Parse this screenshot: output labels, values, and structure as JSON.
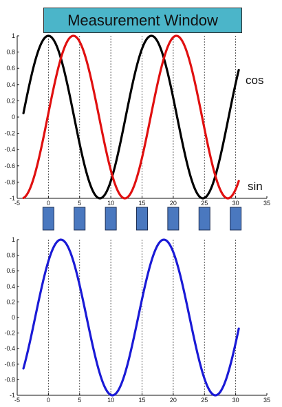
{
  "title": "Measurement Window",
  "colors": {
    "cos": "#000000",
    "sin": "#e01010",
    "measured": "#1a1ad6",
    "block_fill": "#4a78bf",
    "title_bg": "#4bb5c9"
  },
  "labels": {
    "cos": "cos",
    "sin": "sin"
  },
  "chart_data": [
    {
      "type": "line",
      "xlim": [
        -5,
        35
      ],
      "ylim": [
        -1,
        1
      ],
      "xticks": [
        -5,
        0,
        5,
        10,
        15,
        20,
        25,
        30,
        35
      ],
      "yticks": [
        -1,
        -0.8,
        -0.6,
        -0.4,
        -0.2,
        0,
        0.2,
        0.4,
        0.6,
        0.8,
        1
      ],
      "xtick_labels": [
        "-5",
        "0",
        "5",
        "10",
        "15",
        "20",
        "25",
        "30",
        "35"
      ],
      "ytick_labels": [
        "-1",
        "-0.8",
        "-0.6",
        "-0.4",
        "-0.2",
        "0",
        "0.2",
        "0.4",
        "0.6",
        "0.8",
        "1"
      ],
      "vertical_gridlines": [
        0,
        5,
        10,
        15,
        20,
        25,
        30
      ],
      "series": [
        {
          "name": "cos",
          "function": "cos",
          "x_range": [
            -4,
            30.5
          ],
          "period": 16.5,
          "phase_at": 0
        },
        {
          "name": "sin",
          "function": "cos",
          "x_range": [
            -4,
            30.5
          ],
          "period": 16.5,
          "phase_at": 4
        }
      ]
    },
    {
      "type": "line",
      "xlim": [
        -5,
        35
      ],
      "ylim": [
        -1,
        1
      ],
      "xticks": [
        -5,
        0,
        5,
        10,
        15,
        20,
        25,
        30,
        35
      ],
      "yticks": [
        -1,
        -0.8,
        -0.6,
        -0.4,
        -0.2,
        0,
        0.2,
        0.4,
        0.6,
        0.8,
        1
      ],
      "xtick_labels": [
        "-5",
        "0",
        "5",
        "10",
        "15",
        "20",
        "25",
        "30",
        "35"
      ],
      "ytick_labels": [
        "-1",
        "-0.8",
        "-0.6",
        "-0.4",
        "-0.2",
        "0",
        "0.2",
        "0.4",
        "0.6",
        "0.8",
        "1"
      ],
      "vertical_gridlines": [
        0,
        5,
        10,
        15,
        20,
        25,
        30
      ],
      "series": [
        {
          "name": "",
          "function": "cos",
          "x_range": [
            -4,
            30.5
          ],
          "period": 16.5,
          "phase_at": 2
        }
      ]
    }
  ],
  "measurement_windows": [
    0,
    5,
    10,
    15,
    20,
    25,
    30
  ]
}
